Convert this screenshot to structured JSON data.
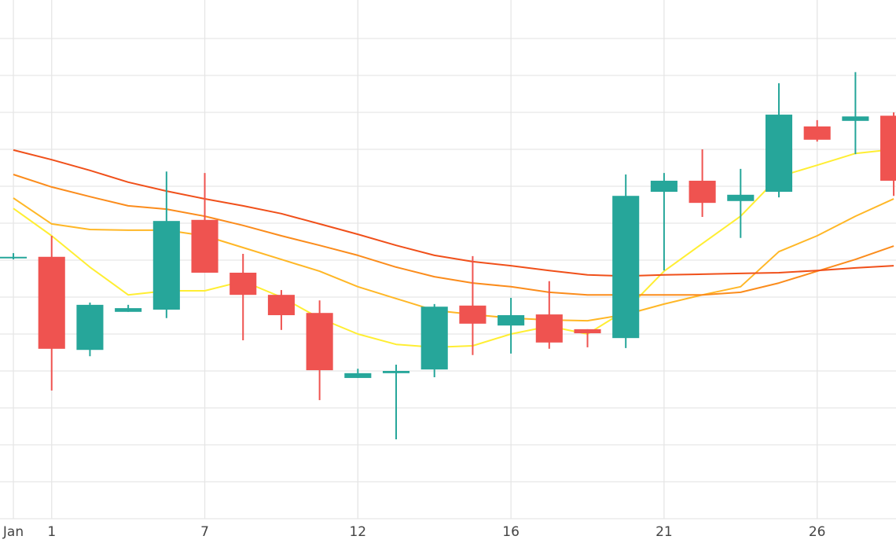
{
  "chart_data": {
    "type": "candlestick",
    "x": [
      0,
      1,
      2,
      3,
      4,
      5,
      6,
      7,
      8,
      9,
      10,
      11,
      12,
      13,
      14,
      15,
      16,
      17,
      18,
      19,
      20,
      21,
      22,
      23
    ],
    "open": [
      7.06,
      7.09,
      4.57,
      5.6,
      5.66,
      8.09,
      6.66,
      6.06,
      5.57,
      3.81,
      3.94,
      4.04,
      5.77,
      5.23,
      5.53,
      5.13,
      4.89,
      8.85,
      9.15,
      8.6,
      8.85,
      10.62,
      10.77,
      10.91
    ],
    "high": [
      7.19,
      7.66,
      5.85,
      5.79,
      9.4,
      9.36,
      7.17,
      6.19,
      5.91,
      4.06,
      4.17,
      5.81,
      7.11,
      5.98,
      6.43,
      5.13,
      9.32,
      9.36,
      10.0,
      9.47,
      11.79,
      10.79,
      12.09,
      11.0
    ],
    "low": [
      7.02,
      3.47,
      4.4,
      5.6,
      5.43,
      6.66,
      4.83,
      5.11,
      3.21,
      3.81,
      2.15,
      3.83,
      4.43,
      4.47,
      4.6,
      4.64,
      4.62,
      6.72,
      8.17,
      7.6,
      8.7,
      10.21,
      9.87,
      8.74
    ],
    "close": [
      7.09,
      4.6,
      5.79,
      5.7,
      8.06,
      6.66,
      6.06,
      5.51,
      4.02,
      3.94,
      4.0,
      5.74,
      5.28,
      5.51,
      4.77,
      5.02,
      8.74,
      9.15,
      8.55,
      8.77,
      10.94,
      10.26,
      10.89,
      9.15
    ],
    "increasing_color": "#26a69a",
    "decreasing_color": "#ef5350",
    "lines": [
      {
        "color": "#ffee33",
        "values": [
          8.4,
          7.66,
          6.81,
          6.06,
          6.17,
          6.17,
          6.43,
          6.0,
          5.43,
          5.0,
          4.72,
          4.64,
          4.68,
          5.0,
          5.21,
          5.0,
          5.64,
          6.7,
          7.45,
          8.19,
          9.26,
          9.57,
          9.89,
          10.0
        ]
      },
      {
        "color": "#ffb726",
        "values": [
          8.68,
          7.98,
          7.83,
          7.81,
          7.81,
          7.66,
          7.34,
          7.02,
          6.7,
          6.28,
          5.96,
          5.64,
          5.53,
          5.43,
          5.38,
          5.36,
          5.53,
          5.81,
          6.06,
          6.28,
          7.23,
          7.66,
          8.19,
          8.66
        ]
      },
      {
        "color": "#fb8c1c",
        "values": [
          9.32,
          8.98,
          8.72,
          8.47,
          8.38,
          8.19,
          7.94,
          7.66,
          7.4,
          7.13,
          6.81,
          6.55,
          6.38,
          6.28,
          6.13,
          6.06,
          6.06,
          6.06,
          6.06,
          6.13,
          6.38,
          6.7,
          7.02,
          7.38
        ]
      },
      {
        "color": "#f0501a",
        "values": [
          9.98,
          9.72,
          9.43,
          9.11,
          8.87,
          8.66,
          8.47,
          8.26,
          7.98,
          7.7,
          7.4,
          7.13,
          6.96,
          6.85,
          6.72,
          6.6,
          6.57,
          6.6,
          6.62,
          6.64,
          6.66,
          6.72,
          6.79,
          6.85
        ]
      }
    ],
    "xlim": [
      -0.35,
      23.06
    ],
    "ylim": [
      0,
      14
    ],
    "xticks": [
      {
        "value": 0,
        "label": "Jan"
      },
      1,
      {
        "value": 5,
        "label": "7"
      },
      {
        "value": 9,
        "label": "12"
      },
      {
        "value": 13,
        "label": "16"
      },
      {
        "value": 17,
        "label": "21"
      },
      {
        "value": 21,
        "label": "26"
      }
    ],
    "xtick_labels_extra": null,
    "yticks": [
      0,
      1,
      2,
      3,
      4,
      5,
      6,
      7,
      8,
      9,
      10,
      11,
      12,
      13
    ],
    "grid": true
  }
}
